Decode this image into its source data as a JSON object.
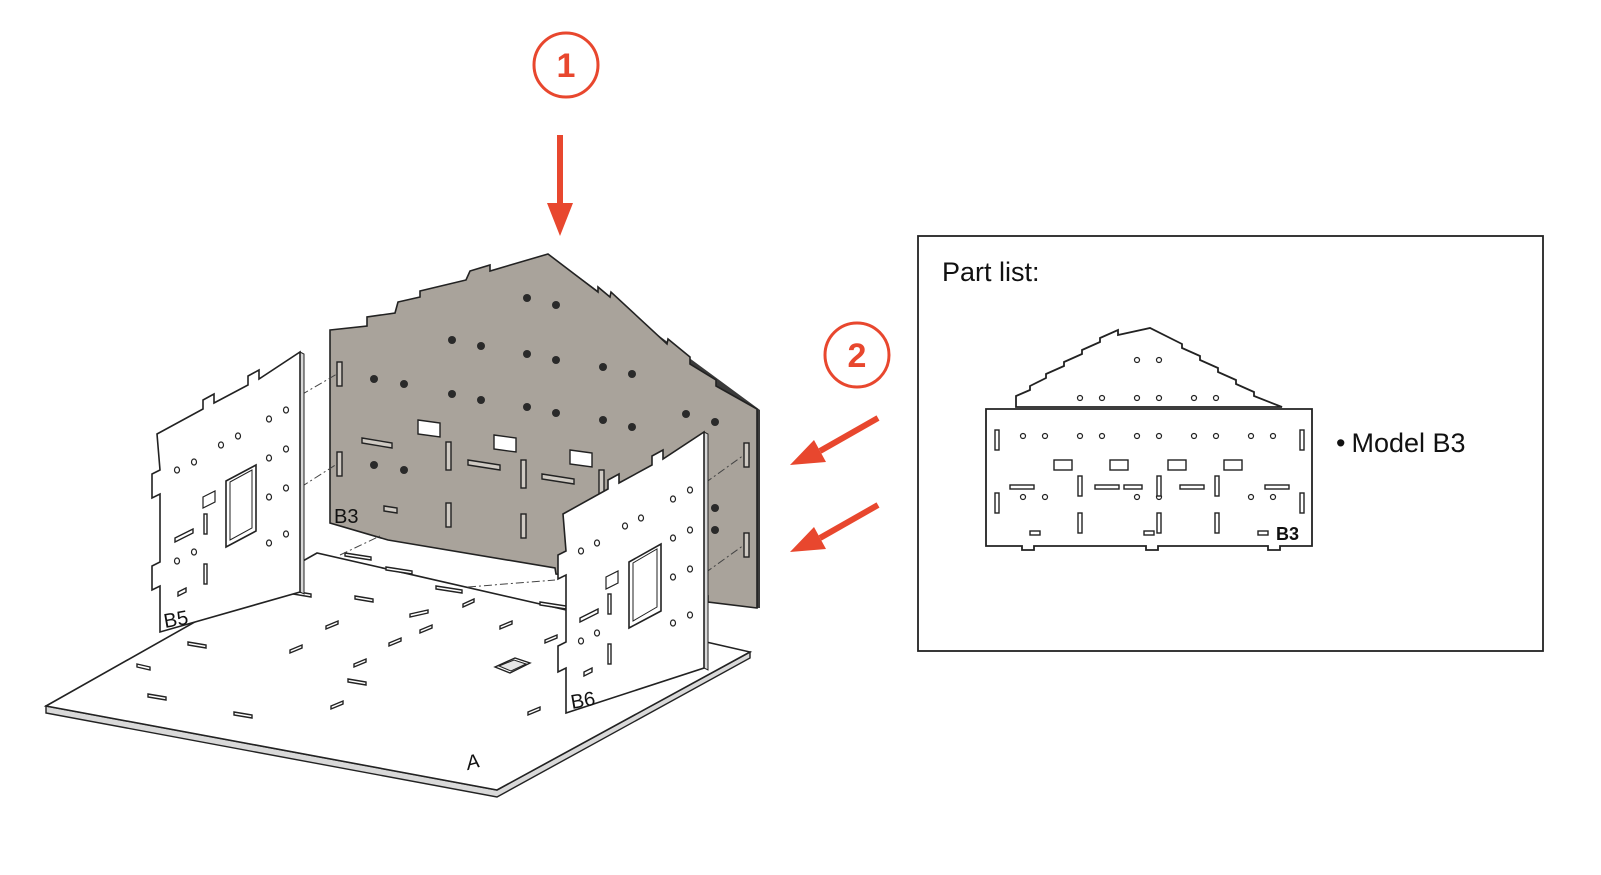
{
  "steps": [
    {
      "number": "1",
      "color": "#e8472e"
    },
    {
      "number": "2",
      "color": "#e8472e"
    }
  ],
  "parts": {
    "base": "A",
    "back_wall": "B3",
    "left_wall": "B5",
    "right_wall": "B6"
  },
  "part_list": {
    "title": "Part list:",
    "items": [
      {
        "bullet": "•",
        "label": "Model B3"
      }
    ],
    "drawing_label": "B3"
  },
  "colors": {
    "accent": "#e8472e",
    "panel_gray": "#a9a39b",
    "outline": "#222222"
  }
}
